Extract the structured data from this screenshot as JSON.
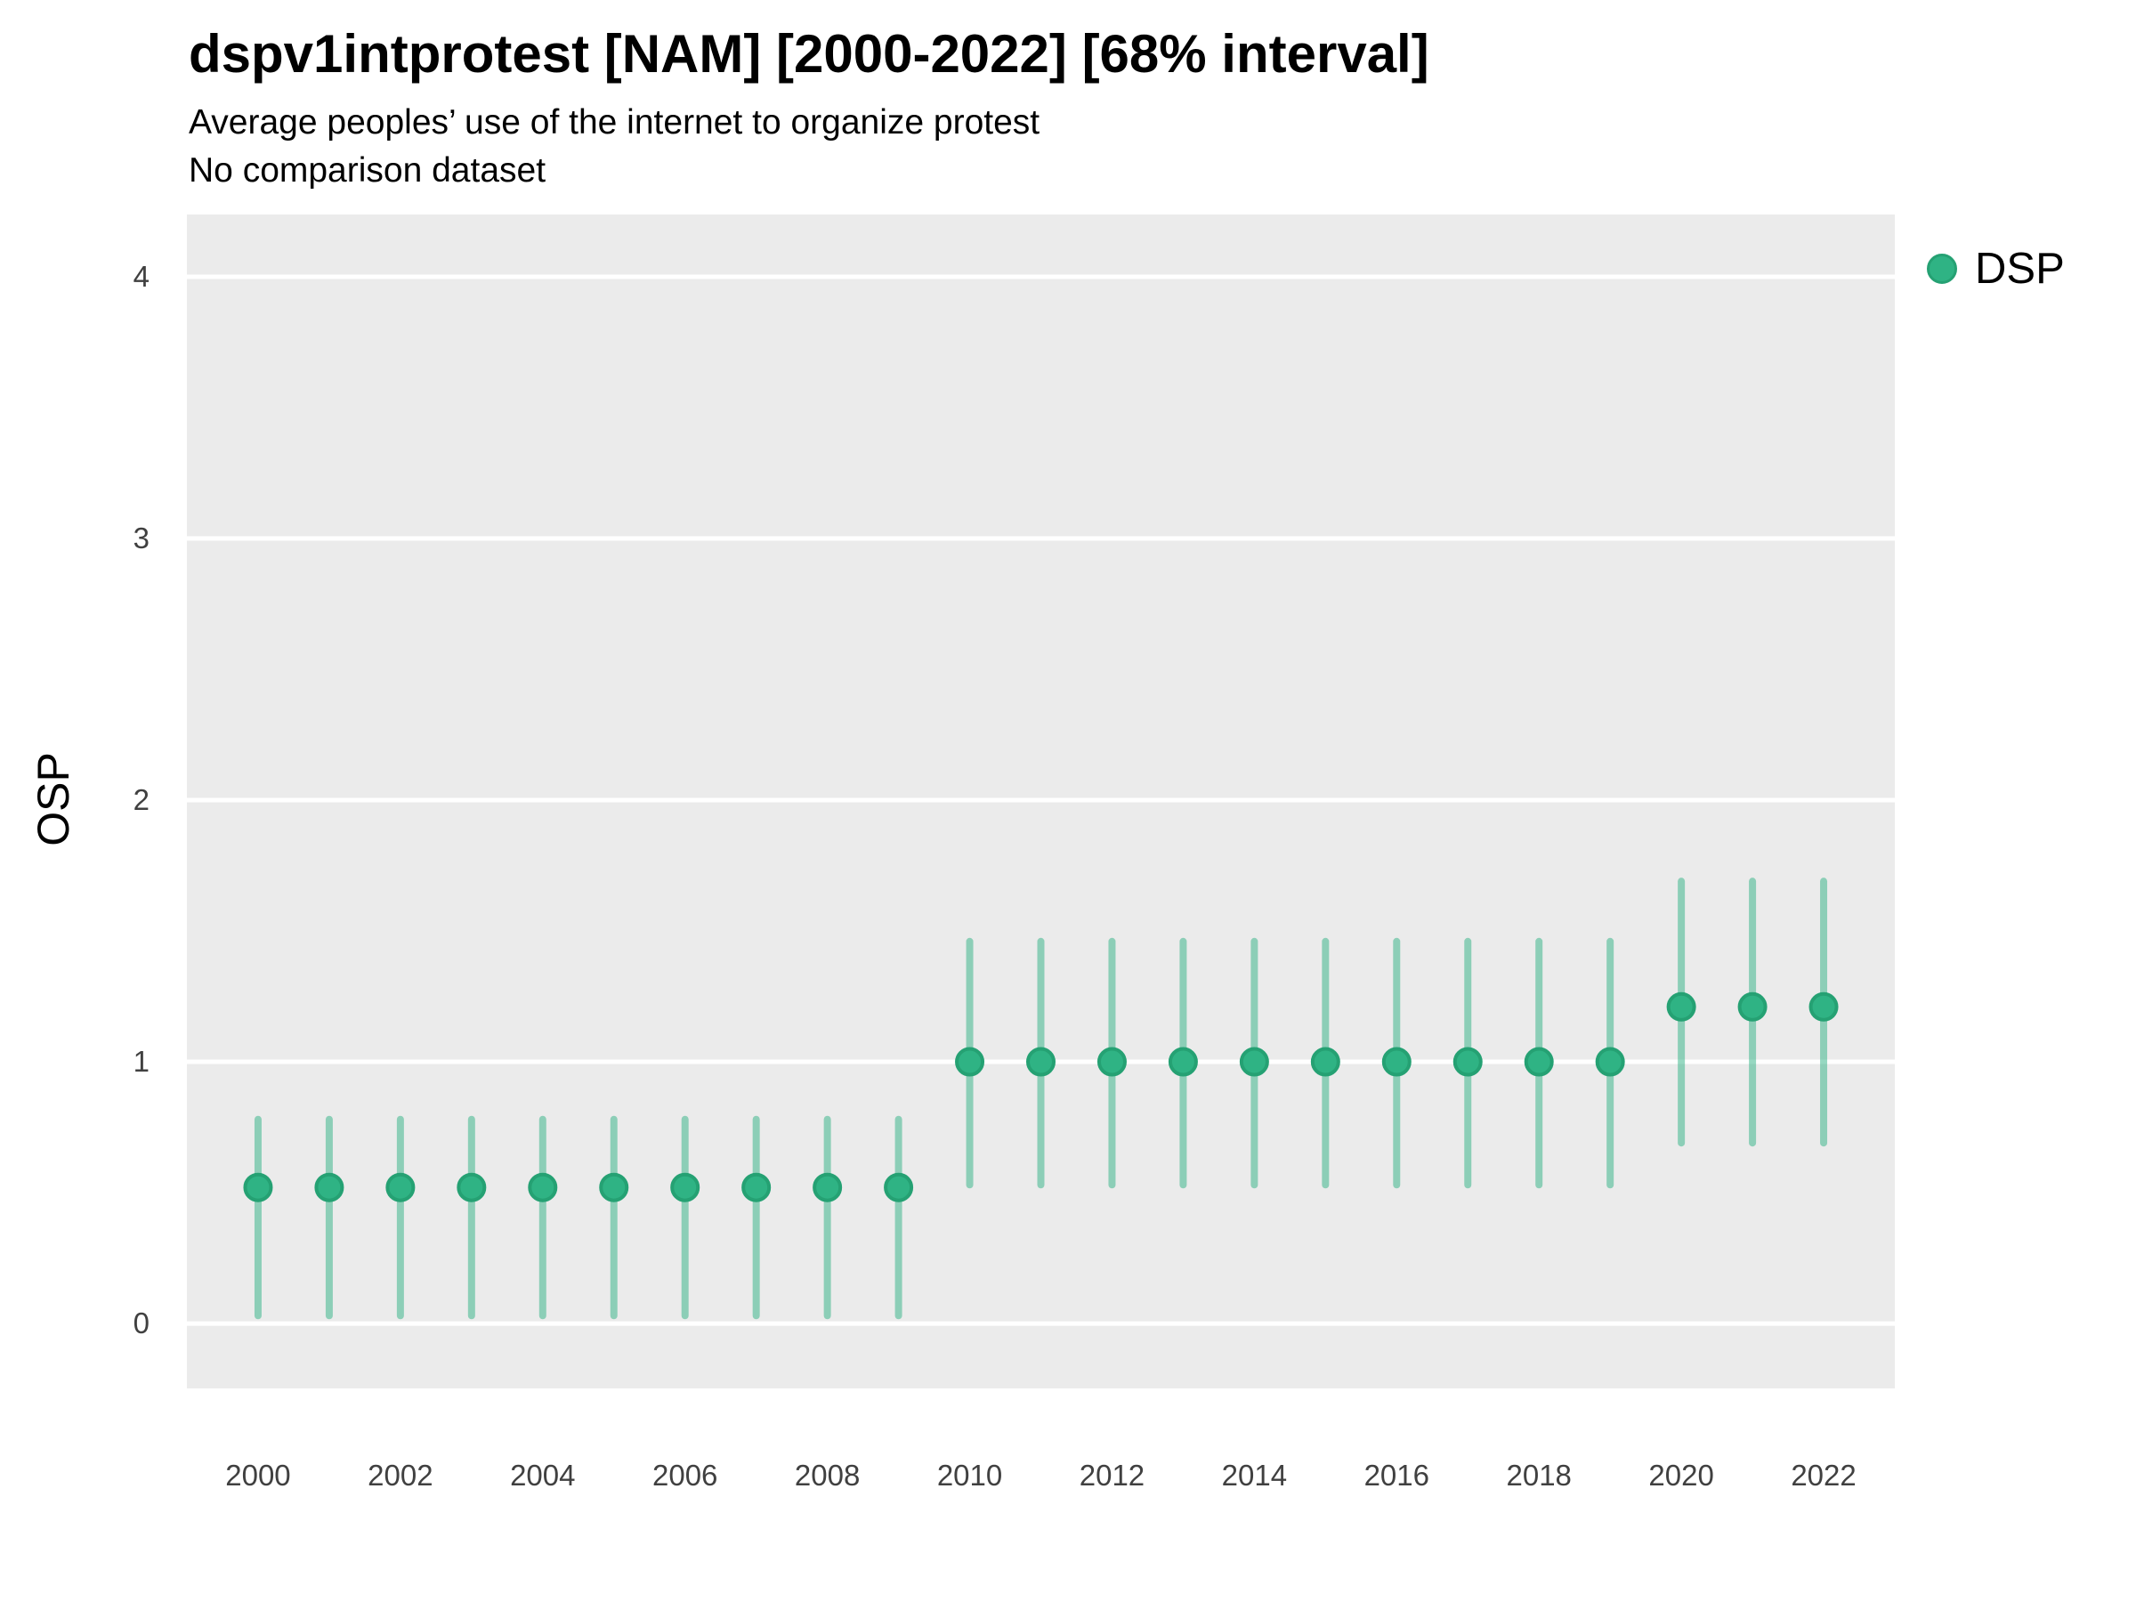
{
  "header": {
    "title": "dspv1intprotest [NAM] [2000-2022] [68% interval]",
    "subtitle": "Average peoples’ use of the internet to organize protest",
    "subtitle2": "No comparison dataset"
  },
  "legend": {
    "label": "DSP"
  },
  "colors": {
    "point_fill": "#2fb384",
    "point_stroke": "#25a173",
    "panel_background": "#ebebeb",
    "gridline": "#ffffff",
    "tick_text": "#404040"
  },
  "chart_data": {
    "type": "scatter",
    "title": "dspv1intprotest [NAM] [2000-2022] [68% interval]",
    "subtitle": "Average peoples’ use of the internet to organize protest",
    "note": "No comparison dataset",
    "xlabel": "",
    "ylabel": "OSP",
    "legend_position": "right",
    "grid": "horizontal-major-only",
    "interval_level": "68%",
    "xlim": [
      1999,
      2023
    ],
    "ylim": [
      -0.248,
      4.238
    ],
    "x_ticks": [
      2000,
      2002,
      2004,
      2006,
      2008,
      2010,
      2012,
      2014,
      2016,
      2018,
      2020,
      2022
    ],
    "y_ticks": [
      0,
      1,
      2,
      3,
      4
    ],
    "series": [
      {
        "name": "DSP",
        "points": [
          {
            "year": 2000,
            "est": 0.52,
            "lo": 0.03,
            "hi": 0.78
          },
          {
            "year": 2001,
            "est": 0.52,
            "lo": 0.03,
            "hi": 0.78
          },
          {
            "year": 2002,
            "est": 0.52,
            "lo": 0.03,
            "hi": 0.78
          },
          {
            "year": 2003,
            "est": 0.52,
            "lo": 0.03,
            "hi": 0.78
          },
          {
            "year": 2004,
            "est": 0.52,
            "lo": 0.03,
            "hi": 0.78
          },
          {
            "year": 2005,
            "est": 0.52,
            "lo": 0.03,
            "hi": 0.78
          },
          {
            "year": 2006,
            "est": 0.52,
            "lo": 0.03,
            "hi": 0.78
          },
          {
            "year": 2007,
            "est": 0.52,
            "lo": 0.03,
            "hi": 0.78
          },
          {
            "year": 2008,
            "est": 0.52,
            "lo": 0.03,
            "hi": 0.78
          },
          {
            "year": 2009,
            "est": 0.52,
            "lo": 0.03,
            "hi": 0.78
          },
          {
            "year": 2010,
            "est": 1.0,
            "lo": 0.53,
            "hi": 1.46
          },
          {
            "year": 2011,
            "est": 1.0,
            "lo": 0.53,
            "hi": 1.46
          },
          {
            "year": 2012,
            "est": 1.0,
            "lo": 0.53,
            "hi": 1.46
          },
          {
            "year": 2013,
            "est": 1.0,
            "lo": 0.53,
            "hi": 1.46
          },
          {
            "year": 2014,
            "est": 1.0,
            "lo": 0.53,
            "hi": 1.46
          },
          {
            "year": 2015,
            "est": 1.0,
            "lo": 0.53,
            "hi": 1.46
          },
          {
            "year": 2016,
            "est": 1.0,
            "lo": 0.53,
            "hi": 1.46
          },
          {
            "year": 2017,
            "est": 1.0,
            "lo": 0.53,
            "hi": 1.46
          },
          {
            "year": 2018,
            "est": 1.0,
            "lo": 0.53,
            "hi": 1.46
          },
          {
            "year": 2019,
            "est": 1.0,
            "lo": 0.53,
            "hi": 1.46
          },
          {
            "year": 2020,
            "est": 1.21,
            "lo": 0.69,
            "hi": 1.69
          },
          {
            "year": 2021,
            "est": 1.21,
            "lo": 0.69,
            "hi": 1.69
          },
          {
            "year": 2022,
            "est": 1.21,
            "lo": 0.69,
            "hi": 1.69
          }
        ]
      }
    ]
  }
}
